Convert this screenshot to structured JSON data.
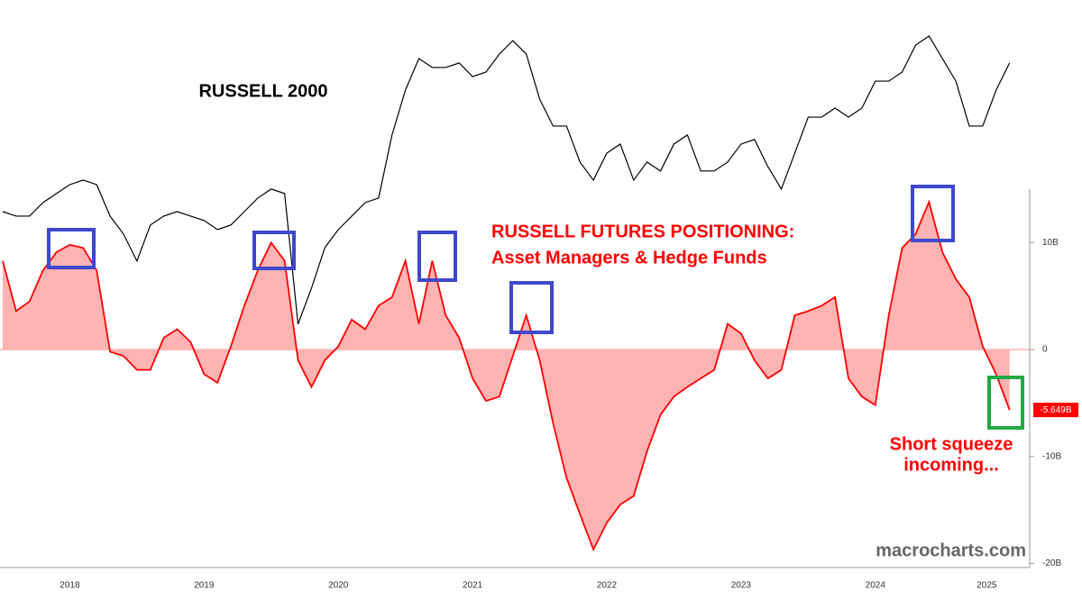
{
  "chart_data": {
    "type": "line",
    "title": "RUSSELL 2000",
    "subtitle": [
      "RUSSELL FUTURES POSITIONING:",
      "Asset Managers & Hedge Funds"
    ],
    "annotations": [
      "Short squeeze",
      "incoming..."
    ],
    "source": "macrocharts.com",
    "x": [
      2018.0,
      2018.1,
      2018.2,
      2018.3,
      2018.4,
      2018.5,
      2018.6,
      2018.7,
      2018.8,
      2018.9,
      2019.0,
      2019.1,
      2019.2,
      2019.3,
      2019.4,
      2019.5,
      2019.6,
      2019.7,
      2019.8,
      2019.9,
      2020.0,
      2020.1,
      2020.2,
      2020.3,
      2020.4,
      2020.5,
      2020.6,
      2020.7,
      2020.8,
      2020.9,
      2021.0,
      2021.1,
      2021.2,
      2021.3,
      2021.4,
      2021.5,
      2021.6,
      2021.7,
      2021.8,
      2021.9,
      2022.0,
      2022.1,
      2022.2,
      2022.3,
      2022.4,
      2022.5,
      2022.6,
      2022.7,
      2022.8,
      2022.9,
      2023.0,
      2023.1,
      2023.2,
      2023.3,
      2023.4,
      2023.5,
      2023.6,
      2023.7,
      2023.8,
      2023.9,
      2024.0,
      2024.1,
      2024.2,
      2024.3,
      2024.4,
      2024.5,
      2024.6,
      2024.7,
      2024.8,
      2024.9,
      2025.0,
      2025.1,
      2025.2,
      2025.3,
      2025.4,
      2025.5
    ],
    "series": [
      {
        "name": "RUSSELL FUTURES POSITIONING",
        "color": "#ff0000",
        "area_color": "#ffb3b3",
        "values": [
          8.3,
          3.6,
          4.5,
          7.4,
          9.1,
          9.8,
          9.5,
          7.4,
          -0.2,
          -0.6,
          -1.9,
          -1.9,
          1.1,
          1.9,
          0.7,
          -2.3,
          -3.1,
          0.3,
          4.1,
          7.4,
          10,
          8.3,
          -1,
          -3.5,
          -1,
          0.3,
          2.8,
          1.9,
          4.1,
          4.9,
          8.3,
          2.4,
          8.3,
          3.2,
          1.1,
          -2.7,
          -4.8,
          -4.4,
          -0.6,
          3.2,
          -1,
          -6.9,
          -12,
          -15.4,
          -18.7,
          -16.2,
          -14.5,
          -13.7,
          -9.5,
          -6.1,
          -4.4,
          -3.5,
          -2.7,
          -1.9,
          2.4,
          1.5,
          -1,
          -2.7,
          -1.9,
          3.2,
          3.6,
          4.1,
          4.9,
          -2.7,
          -4.4,
          -5.2,
          3.2,
          9.5,
          10.8,
          13.8,
          9.1,
          6.6,
          4.9,
          0.3,
          -2.3,
          -5.649
        ],
        "value_labels": [
          null,
          null,
          null,
          null,
          null,
          null,
          null,
          null,
          null,
          null,
          null,
          null,
          null,
          null,
          null,
          null,
          null,
          null,
          null,
          null,
          null,
          null,
          null,
          null,
          null,
          null,
          null,
          null,
          null,
          null,
          null,
          null,
          null,
          null,
          null,
          null,
          null,
          null,
          null,
          null,
          null,
          null,
          null,
          null,
          null,
          null,
          null,
          null,
          null,
          null,
          null,
          null,
          null,
          null,
          null,
          null,
          null,
          null,
          null,
          null,
          null,
          null,
          null,
          null,
          null,
          null,
          null,
          null,
          null,
          null,
          null,
          null,
          null,
          null,
          null,
          "-5.649B"
        ]
      },
      {
        "name": "RUSSELL 2000",
        "color": "#000000",
        "axis": "y2",
        "values": [
          1575,
          1553,
          1553,
          1618,
          1662,
          1705,
          1727,
          1705,
          1553,
          1466,
          1336,
          1510,
          1553,
          1575,
          1553,
          1532,
          1488,
          1510,
          1575,
          1640,
          1684,
          1662,
          1031,
          1205,
          1401,
          1488,
          1553,
          1618,
          1640,
          1945,
          2162,
          2314,
          2271,
          2271,
          2293,
          2227,
          2249,
          2336,
          2401,
          2336,
          2118,
          1988,
          1988,
          1814,
          1727,
          1857,
          1901,
          1727,
          1814,
          1771,
          1901,
          1945,
          1771,
          1771,
          1814,
          1901,
          1923,
          1792,
          1684,
          1857,
          2031,
          2031,
          2075,
          2031,
          2075,
          2205,
          2205,
          2249,
          2379,
          2423,
          2314,
          2205,
          1988,
          1988,
          2162,
          2293
        ]
      }
    ],
    "xlim": [
      2017.98,
      2025.65
    ],
    "xticks": [
      {
        "value": 2018.5,
        "label": "2018"
      },
      {
        "value": 2019.5,
        "label": "2019"
      },
      {
        "value": 2020.5,
        "label": "2020"
      },
      {
        "value": 2021.5,
        "label": "2021"
      },
      {
        "value": 2022.5,
        "label": "2022"
      },
      {
        "value": 2023.5,
        "label": "2023"
      },
      {
        "value": 2024.5,
        "label": "2024"
      },
      {
        "value": 2025.33,
        "label": "2025"
      }
    ],
    "ylim": [
      -20.3,
      32.7
    ],
    "yticks": [
      {
        "value": 10,
        "label": "10B"
      },
      0,
      {
        "value": -10,
        "label": "-10B"
      },
      {
        "value": -20,
        "label": "-20B"
      }
    ],
    "y2lim": [
      -140,
      2597
    ]
  }
}
